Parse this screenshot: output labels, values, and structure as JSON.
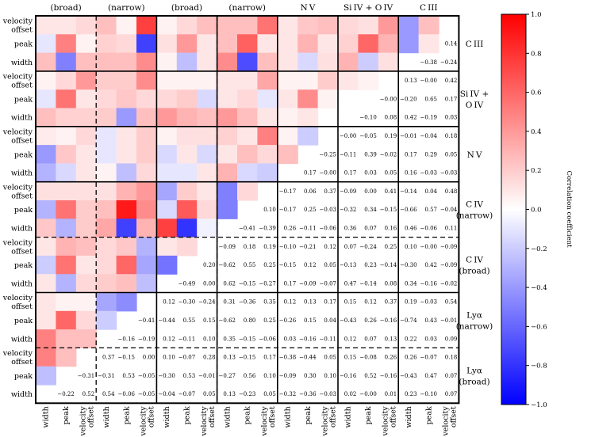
{
  "chart_data": {
    "type": "heatmap",
    "title": "",
    "colorbar": {
      "label": "Correlation coefficient",
      "vmin": -1.0,
      "vmax": 1.0,
      "ticks": [
        "1.0",
        "0.8",
        "0.6",
        "0.4",
        "0.2",
        "0.0",
        "−0.2",
        "−0.4",
        "−0.6",
        "−0.8",
        "−1.0"
      ],
      "color_low": "#0000ff",
      "color_mid": "#ffffff",
      "color_high": "#ff0000"
    },
    "top_groups": [
      "(broad)",
      "(narrow)",
      "(broad)",
      "(narrow)",
      "N V",
      "Si IV + O IV",
      "C III"
    ],
    "right_groups": [
      "C III",
      "Si IV +|O IV",
      "N V",
      "C IV|(narrow)",
      "C IV|(broad)",
      "Lyα|(narrow)",
      "Lyα|(broad)"
    ],
    "row_tick_labels": [
      "velocity|offset",
      "peak",
      "width"
    ],
    "col_tick_labels": [
      "width",
      "peak",
      "velocity|offset"
    ],
    "colors": [
      [
        0.1,
        0.1,
        0.15,
        0.25,
        0.05,
        0.75,
        0.05,
        0.15,
        0.25,
        0.25,
        0.25,
        0.55,
        0.1,
        0.22,
        0.25,
        0.15,
        0.12,
        0.4,
        -0.4,
        0.25,
        null
      ],
      [
        -0.1,
        0.5,
        0.05,
        0.18,
        0.15,
        -0.75,
        0.12,
        0.4,
        0.1,
        0.25,
        0.62,
        0.1,
        0.1,
        0.3,
        0.1,
        0.18,
        0.6,
        0.3,
        -0.4,
        0.1,
        null
      ],
      [
        0.25,
        -0.5,
        0.25,
        0.25,
        0.25,
        0.45,
        0.05,
        -0.25,
        0.1,
        0.45,
        -0.7,
        0.25,
        0.1,
        -0.15,
        0.12,
        0.3,
        -0.2,
        0.12,
        null,
        null,
        null
      ],
      [
        0.05,
        0.15,
        0.4,
        0.2,
        0.2,
        0.45,
        0.05,
        0.05,
        0.05,
        0.1,
        0.1,
        0.35,
        0.05,
        0.05,
        0.2,
        0.1,
        0.05,
        null,
        null,
        null,
        null
      ],
      [
        -0.1,
        0.55,
        0.1,
        0.15,
        0.22,
        0.15,
        0.15,
        0.2,
        -0.15,
        0.1,
        0.15,
        -0.1,
        0.1,
        0.45,
        0.05,
        null,
        null,
        null,
        null,
        null,
        null
      ],
      [
        0.25,
        0.18,
        0.18,
        0.2,
        -0.4,
        0.25,
        0.4,
        0.3,
        0.25,
        0.4,
        0.25,
        0.1,
        0.05,
        0.1,
        null,
        null,
        null,
        null,
        null,
        null,
        null
      ],
      [
        0.08,
        0.05,
        0.15,
        -0.1,
        0.1,
        0.2,
        0.05,
        0.12,
        0.12,
        0.18,
        0.1,
        0.5,
        0.05,
        -0.2,
        null,
        null,
        null,
        null,
        null,
        null,
        null
      ],
      [
        -0.4,
        0.22,
        0.1,
        -0.1,
        0.1,
        0.2,
        -0.15,
        0.1,
        -0.15,
        0.1,
        0.25,
        0.15,
        0.25,
        null,
        null,
        null,
        null,
        null,
        null,
        null,
        null
      ],
      [
        -0.3,
        -0.15,
        0.1,
        0.05,
        -0.25,
        0.15,
        -0.1,
        -0.1,
        0.1,
        0.3,
        -0.15,
        -0.2,
        null,
        null,
        null,
        null,
        null,
        null,
        null,
        null,
        null
      ],
      [
        0.12,
        0.12,
        0.12,
        0.12,
        0.3,
        0.4,
        -0.35,
        0.2,
        0.1,
        -0.5,
        0.15,
        null,
        null,
        null,
        null,
        null,
        null,
        null,
        null,
        null,
        null
      ],
      [
        -0.3,
        0.55,
        0.2,
        0.25,
        0.9,
        0.45,
        -0.15,
        0.65,
        0.15,
        -0.5,
        null,
        null,
        null,
        null,
        null,
        null,
        null,
        null,
        null,
        null,
        null
      ],
      [
        0.22,
        -0.3,
        0.2,
        0.35,
        -0.75,
        0.3,
        0.75,
        -0.8,
        -0.05,
        null,
        null,
        null,
        null,
        null,
        null,
        null,
        null,
        null,
        null,
        null,
        null
      ],
      [
        0.1,
        0.3,
        0.25,
        0.15,
        0.22,
        -0.3,
        0.1,
        0.15,
        null,
        null,
        null,
        null,
        null,
        null,
        null,
        null,
        null,
        null,
        null,
        null,
        null
      ],
      [
        -0.2,
        0.55,
        0.1,
        0.15,
        0.6,
        -0.35,
        -0.55,
        null,
        null,
        null,
        null,
        null,
        null,
        null,
        null,
        null,
        null,
        null,
        null,
        null,
        null
      ],
      [
        0.1,
        -0.3,
        0.15,
        0.2,
        0.25,
        -0.25,
        null,
        null,
        null,
        null,
        null,
        null,
        null,
        null,
        null,
        null,
        null,
        null,
        null,
        null,
        null
      ],
      [
        0.1,
        0.05,
        0.05,
        -0.35,
        -0.45,
        null,
        null,
        null,
        null,
        null,
        null,
        null,
        null,
        null,
        null,
        null,
        null,
        null,
        null,
        null,
        null
      ],
      [
        0.1,
        0.6,
        0.15,
        -0.2,
        null,
        null,
        null,
        null,
        null,
        null,
        null,
        null,
        null,
        null,
        null,
        null,
        null,
        null,
        null,
        null,
        null
      ],
      [
        0.5,
        0.25,
        0.25,
        null,
        null,
        null,
        null,
        null,
        null,
        null,
        null,
        null,
        null,
        null,
        null,
        null,
        null,
        null,
        null,
        null,
        null
      ],
      [
        0.5,
        0.25,
        null,
        null,
        null,
        null,
        null,
        null,
        null,
        null,
        null,
        null,
        null,
        null,
        null,
        null,
        null,
        null,
        null,
        null,
        null
      ],
      [
        -0.25,
        null,
        null,
        null,
        null,
        null,
        null,
        null,
        null,
        null,
        null,
        null,
        null,
        null,
        null,
        null,
        null,
        null,
        null,
        null,
        null
      ],
      [
        null,
        null,
        null,
        null,
        null,
        null,
        null,
        null,
        null,
        null,
        null,
        null,
        null,
        null,
        null,
        null,
        null,
        null,
        null,
        null,
        null
      ]
    ],
    "numbers": [
      [
        null,
        null,
        null,
        null,
        null,
        null,
        null,
        null,
        null,
        null,
        null,
        null,
        null,
        null,
        null,
        null,
        null,
        null,
        null,
        null,
        null
      ],
      [
        null,
        null,
        null,
        null,
        null,
        null,
        null,
        null,
        null,
        null,
        null,
        null,
        null,
        null,
        null,
        null,
        null,
        null,
        null,
        null,
        "0.14"
      ],
      [
        null,
        null,
        null,
        null,
        null,
        null,
        null,
        null,
        null,
        null,
        null,
        null,
        null,
        null,
        null,
        null,
        null,
        null,
        null,
        "−0.38",
        "−0.24"
      ],
      [
        null,
        null,
        null,
        null,
        null,
        null,
        null,
        null,
        null,
        null,
        null,
        null,
        null,
        null,
        null,
        null,
        null,
        null,
        "0.13",
        "−0.00",
        "0.42"
      ],
      [
        null,
        null,
        null,
        null,
        null,
        null,
        null,
        null,
        null,
        null,
        null,
        null,
        null,
        null,
        null,
        null,
        null,
        "−0.00",
        "−0.20",
        "0.65",
        "0.17"
      ],
      [
        null,
        null,
        null,
        null,
        null,
        null,
        null,
        null,
        null,
        null,
        null,
        null,
        null,
        null,
        null,
        null,
        "−0.10",
        "0.08",
        "0.42",
        "−0.19",
        "0.03"
      ],
      [
        null,
        null,
        null,
        null,
        null,
        null,
        null,
        null,
        null,
        null,
        null,
        null,
        null,
        null,
        null,
        "−0.00",
        "−0.05",
        "0.19",
        "−0.01",
        "−0.04",
        "0.18"
      ],
      [
        null,
        null,
        null,
        null,
        null,
        null,
        null,
        null,
        null,
        null,
        null,
        null,
        null,
        null,
        "−0.25",
        "−0.11",
        "0.39",
        "−0.02",
        "0.17",
        "0.29",
        "0.05"
      ],
      [
        null,
        null,
        null,
        null,
        null,
        null,
        null,
        null,
        null,
        null,
        null,
        null,
        null,
        "0.17",
        "−0.00",
        "0.17",
        "0.03",
        "0.05",
        "0.16",
        "−0.03",
        "−0.03"
      ],
      [
        null,
        null,
        null,
        null,
        null,
        null,
        null,
        null,
        null,
        null,
        null,
        null,
        "−0.17",
        "0.06",
        "0.37",
        "−0.09",
        "0.00",
        "0.41",
        "−0.14",
        "0.04",
        "0.48"
      ],
      [
        null,
        null,
        null,
        null,
        null,
        null,
        null,
        null,
        null,
        null,
        null,
        "0.10",
        "−0.17",
        "0.25",
        "−0.03",
        "−0.32",
        "0.34",
        "−0.15",
        "−0.66",
        "0.57",
        "−0.04"
      ],
      [
        null,
        null,
        null,
        null,
        null,
        null,
        null,
        null,
        null,
        null,
        "−0.41",
        "−0.39",
        "0.26",
        "−0.11",
        "−0.06",
        "0.36",
        "0.07",
        "0.16",
        "0.46",
        "−0.06",
        "0.11"
      ],
      [
        null,
        null,
        null,
        null,
        null,
        null,
        null,
        null,
        null,
        "−0.09",
        "0.18",
        "0.19",
        "−0.10",
        "−0.21",
        "0.12",
        "0.07",
        "−0.24",
        "0.25",
        "0.10",
        "−0.00",
        "−0.09"
      ],
      [
        null,
        null,
        null,
        null,
        null,
        null,
        null,
        null,
        "0.20",
        "−0.62",
        "0.55",
        "0.25",
        "−0.15",
        "0.12",
        "0.05",
        "−0.13",
        "0.23",
        "−0.14",
        "−0.30",
        "0.42",
        "−0.09"
      ],
      [
        null,
        null,
        null,
        null,
        null,
        null,
        null,
        "−0.49",
        "0.00",
        "0.62",
        "−0.15",
        "−0.27",
        "0.17",
        "−0.09",
        "−0.07",
        "0.47",
        "−0.14",
        "0.08",
        "0.34",
        "−0.16",
        "−0.02"
      ],
      [
        null,
        null,
        null,
        null,
        null,
        null,
        "0.12",
        "−0.30",
        "−0.24",
        "0.31",
        "−0.36",
        "0.35",
        "0.12",
        "0.13",
        "0.17",
        "0.15",
        "0.12",
        "0.37",
        "0.19",
        "−0.03",
        "0.54"
      ],
      [
        null,
        null,
        null,
        null,
        null,
        "−0.41",
        "−0.44",
        "0.55",
        "0.15",
        "−0.62",
        "0.80",
        "0.25",
        "−0.26",
        "0.15",
        "0.04",
        "−0.43",
        "0.26",
        "−0.16",
        "−0.74",
        "0.43",
        "−0.01"
      ],
      [
        null,
        null,
        null,
        null,
        "−0.16",
        "−0.19",
        "0.12",
        "−0.11",
        "0.10",
        "0.35",
        "−0.15",
        "−0.06",
        "0.03",
        "−0.16",
        "−0.11",
        "0.12",
        "0.07",
        "0.13",
        "0.22",
        "0.03",
        "0.09"
      ],
      [
        null,
        null,
        null,
        "0.37",
        "−0.15",
        "0.00",
        "0.10",
        "−0.07",
        "0.28",
        "0.13",
        "−0.15",
        "0.17",
        "−0.38",
        "−0.44",
        "0.05",
        "0.15",
        "−0.08",
        "0.26",
        "0.26",
        "−0.07",
        "0.18"
      ],
      [
        null,
        null,
        "−0.31",
        "−0.31",
        "0.53",
        "−0.05",
        "−0.30",
        "0.53",
        "−0.01",
        "−0.27",
        "0.56",
        "0.10",
        "−0.09",
        "0.30",
        "0.10",
        "−0.16",
        "0.52",
        "−0.16",
        "−0.43",
        "0.47",
        "0.07"
      ],
      [
        null,
        "−0.22",
        "0.52",
        "0.54",
        "−0.06",
        "−0.05",
        "−0.04",
        "−0.07",
        "0.05",
        "0.13",
        "−0.23",
        "0.05",
        "−0.32",
        "−0.36",
        "−0.03",
        "0.02",
        "−0.00",
        "0.01",
        "0.23",
        "−0.10",
        "0.07"
      ]
    ]
  }
}
